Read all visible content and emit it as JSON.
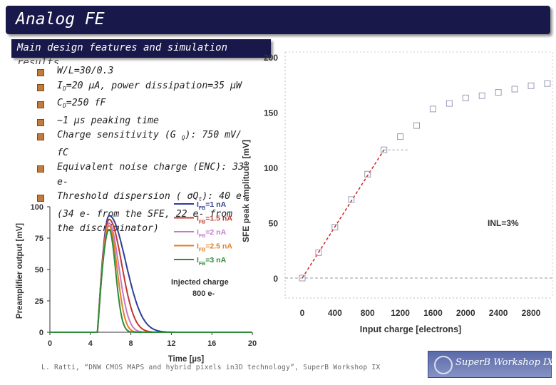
{
  "header": {
    "title": "Analog FE"
  },
  "section": {
    "title": "Main design features and simulation",
    "title_cont": "results"
  },
  "bullets": [
    {
      "text": "W/L=30/0.3"
    },
    {
      "pre": "I",
      "sub": "D",
      "post": "=20  µA, power dissipation=35        µW"
    },
    {
      "pre": "C",
      "sub": "D",
      "post": "=250  fF"
    },
    {
      "text": "~1  µs peaking time"
    },
    {
      "pre": "Charge sensitivity (G   ",
      "sub": "Q",
      "post": "): 750 mV/  fC"
    },
    {
      "text": "Equivalent noise charge (ENC): 33 e-"
    },
    {
      "pre": "Threshold dispersion (  σQ",
      "sub": "t",
      "post": "): 40 e-"
    },
    {
      "text": "(34 e- from the SFE, 22 e- from",
      "nobullet": true
    },
    {
      "text": "the discriminator)",
      "nobullet": true
    }
  ],
  "footer": "L. Ratti, “DNW CMOS MAPS and hybrid pixels in3D technology”, SuperB Workshop IX",
  "logo": {
    "text": "SuperB Workshop IX"
  },
  "chart_data": [
    {
      "type": "line",
      "xlabel": "Time [µs]",
      "ylabel": "Preamplifier output [mV]",
      "xlim": [
        0,
        20
      ],
      "ylim": [
        0,
        100
      ],
      "x_ticks": [
        0,
        4,
        8,
        12,
        16,
        20
      ],
      "y_ticks": [
        0,
        25,
        50,
        75,
        100
      ],
      "annotation": [
        "Injected charge",
        "800 e-"
      ],
      "legend_placement": "top-right",
      "series": [
        {
          "name": "I",
          "name_sub": "FB",
          "name_post": "=1 nA",
          "color": "#2c3e99",
          "peak": 93,
          "tfall": 2.3
        },
        {
          "name": "I",
          "name_sub": "FB",
          "name_post": "=1.5 nA",
          "color": "#c0392b",
          "peak": 90,
          "tfall": 1.75
        },
        {
          "name": "I",
          "name_sub": "FB",
          "name_post": "=2 nA",
          "color": "#c47acc",
          "peak": 87,
          "tfall": 1.35
        },
        {
          "name": "I",
          "name_sub": "FB",
          "name_post": "=2.5 nA",
          "color": "#e67e22",
          "peak": 85,
          "tfall": 1.1
        },
        {
          "name": "I",
          "name_sub": "FB",
          "name_post": "=3 nA",
          "color": "#2e8b3a",
          "peak": 82,
          "tfall": 0.9
        }
      ]
    },
    {
      "type": "scatter",
      "xlabel": "Input charge [electrons]",
      "ylabel": "SFE peak amplitude [mV]",
      "xlim": [
        0,
        3000
      ],
      "ylim": [
        0,
        200
      ],
      "x_ticks": [
        0,
        400,
        800,
        1200,
        1600,
        2000,
        2400,
        2800
      ],
      "y_ticks": [
        0,
        50,
        100,
        150,
        200
      ],
      "annotation": "INL=3%",
      "x": [
        0,
        200,
        400,
        600,
        800,
        1000,
        1200,
        1400,
        1600,
        1800,
        2000,
        2200,
        2400,
        2600,
        2800,
        3000
      ],
      "y": [
        0,
        23,
        46,
        71,
        94,
        116,
        128,
        138,
        153,
        158,
        163,
        165,
        168,
        171,
        174,
        176
      ],
      "fit": {
        "x": [
          0,
          1000
        ],
        "y": [
          0,
          116
        ]
      }
    }
  ]
}
